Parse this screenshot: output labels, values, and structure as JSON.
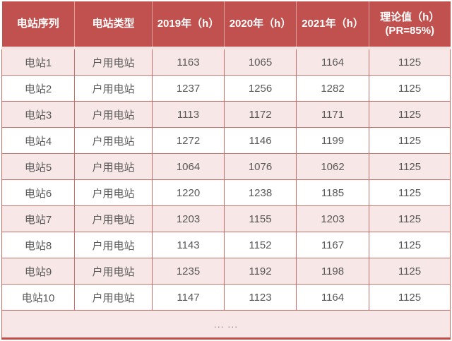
{
  "colors": {
    "header_bg": "#C1514E",
    "header_text": "#FFFFFF",
    "row_alt_bg": "#F7E7E6",
    "row_bg": "#FFFFFF",
    "cell_border": "#C4706B",
    "header_divider": "#D9A09D",
    "header_bottom": "#F4E1E0",
    "table_bottom_border": "#BE4D48",
    "body_text": "#595959",
    "more_text": "#8A8A8A"
  },
  "chart_data": {
    "type": "table",
    "columns": [
      "电站序列",
      "电站类型",
      "2019年（h）",
      "2020年（h）",
      "2021年（h）",
      "理论值（h）\n(PR=85%)"
    ],
    "rows": [
      [
        "电站1",
        "户用电站",
        "1163",
        "1065",
        "1164",
        "1125"
      ],
      [
        "电站2",
        "户用电站",
        "1237",
        "1256",
        "1282",
        "1125"
      ],
      [
        "电站3",
        "户用电站",
        "1113",
        "1172",
        "1171",
        "1125"
      ],
      [
        "电站4",
        "户用电站",
        "1272",
        "1146",
        "1199",
        "1125"
      ],
      [
        "电站5",
        "户用电站",
        "1064",
        "1076",
        "1062",
        "1125"
      ],
      [
        "电站6",
        "户用电站",
        "1220",
        "1238",
        "1185",
        "1125"
      ],
      [
        "电站7",
        "户用电站",
        "1203",
        "1155",
        "1203",
        "1125"
      ],
      [
        "电站8",
        "户用电站",
        "1143",
        "1152",
        "1167",
        "1125"
      ],
      [
        "电站9",
        "户用电站",
        "1235",
        "1192",
        "1198",
        "1125"
      ],
      [
        "电站10",
        "户用电站",
        "1147",
        "1123",
        "1164",
        "1125"
      ]
    ],
    "more_row_label": "... ..."
  }
}
